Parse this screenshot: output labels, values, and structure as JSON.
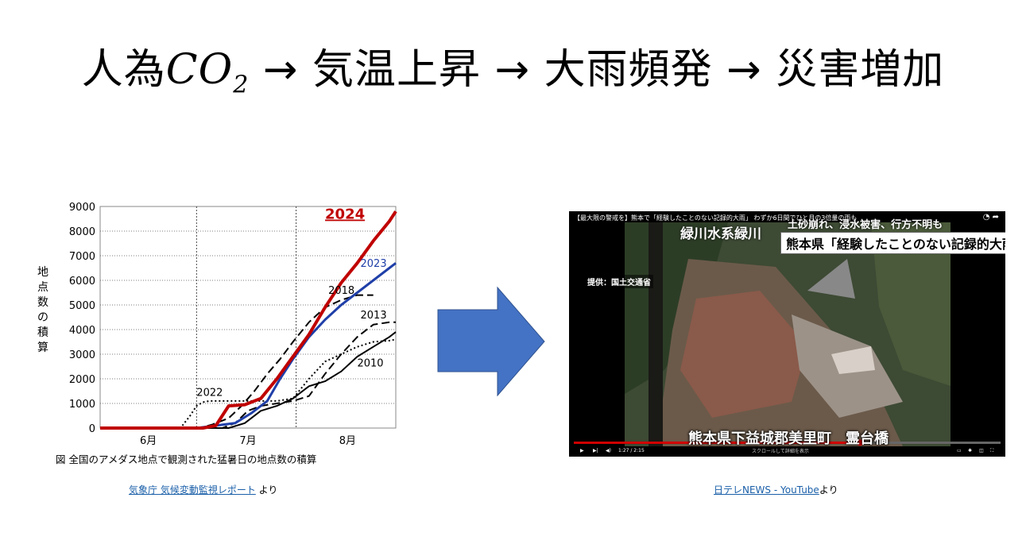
{
  "title": {
    "part1": "人為",
    "co": "CO",
    "sub": "2",
    "rest": " → 気温上昇 → 大雨頻発 → 災害増加"
  },
  "chart_data": {
    "type": "line",
    "ylabel": "地点数の積算",
    "ylim": [
      0,
      9000
    ],
    "yticks": [
      0,
      1000,
      2000,
      3000,
      4000,
      5000,
      6000,
      7000,
      8000,
      9000
    ],
    "xlabel_ticks": [
      "6月",
      "7月",
      "8月"
    ],
    "caption": "図 全国のアメダス地点で観測された猛暑日の地点数の積算",
    "series": [
      {
        "name": "2024",
        "color": "#c00000",
        "width": 4,
        "dash": "",
        "x": [
          0,
          22,
          32,
          36,
          40,
          45,
          50,
          55,
          60,
          65,
          70,
          75,
          80,
          85,
          90,
          92
        ],
        "y": [
          0,
          0,
          0,
          100,
          900,
          950,
          1200,
          2000,
          2900,
          3800,
          4900,
          5900,
          6700,
          7600,
          8400,
          8800
        ]
      },
      {
        "name": "2023",
        "color": "#1f3fa8",
        "width": 3,
        "dash": "",
        "x": [
          0,
          30,
          36,
          42,
          47,
          52,
          56,
          60,
          65,
          70,
          75,
          80,
          85,
          90,
          92
        ],
        "y": [
          0,
          0,
          100,
          200,
          600,
          1100,
          2000,
          2800,
          3700,
          4400,
          5000,
          5500,
          6000,
          6500,
          6700
        ]
      },
      {
        "name": "2022",
        "color": "#000",
        "width": 2,
        "dash": "2,3",
        "x": [
          0,
          25,
          28,
          30,
          32,
          34,
          40,
          45,
          50,
          55,
          60,
          65,
          70,
          75,
          80,
          85,
          90,
          92
        ],
        "y": [
          0,
          0,
          500,
          900,
          1050,
          1100,
          1100,
          1100,
          1100,
          1100,
          1200,
          2000,
          2700,
          3000,
          3300,
          3500,
          3550,
          3600
        ]
      },
      {
        "name": "2018",
        "color": "#000",
        "width": 2,
        "dash": "10,5",
        "x": [
          0,
          31,
          35,
          40,
          44,
          48,
          52,
          56,
          60,
          65,
          70,
          75,
          80,
          85
        ],
        "y": [
          0,
          0,
          150,
          400,
          900,
          1500,
          2200,
          2800,
          3500,
          4300,
          4900,
          5200,
          5400,
          5400
        ]
      },
      {
        "name": "2013",
        "color": "#000",
        "width": 2,
        "dash": "10,5",
        "x": [
          0,
          38,
          42,
          46,
          50,
          55,
          60,
          65,
          70,
          75,
          80,
          85,
          90,
          92
        ],
        "y": [
          0,
          0,
          200,
          700,
          900,
          1000,
          1100,
          1300,
          2200,
          3000,
          3700,
          4200,
          4300,
          4300
        ]
      },
      {
        "name": "2010",
        "color": "#000",
        "width": 2,
        "dash": "",
        "x": [
          0,
          40,
          45,
          50,
          55,
          60,
          65,
          70,
          75,
          80,
          85,
          90,
          92
        ],
        "y": [
          0,
          0,
          200,
          700,
          900,
          1200,
          1700,
          1900,
          2300,
          2900,
          3300,
          3700,
          3900
        ]
      }
    ],
    "labels": [
      {
        "text": "2024",
        "color": "#c00000",
        "bold": true,
        "size": 18
      },
      {
        "text": "2023",
        "color": "#1f3fa8",
        "bold": false,
        "size": 13
      },
      {
        "text": "2018",
        "color": "#000",
        "bold": false,
        "size": 13
      },
      {
        "text": "2013",
        "color": "#000",
        "bold": false,
        "size": 13
      },
      {
        "text": "2010",
        "color": "#000",
        "bold": false,
        "size": 13
      },
      {
        "text": "2022",
        "color": "#000",
        "bold": false,
        "size": 13
      }
    ]
  },
  "captions": {
    "left_link": "気象庁 気候変動監視レポート",
    "left_suffix": " より",
    "right_link": "日テレNEWS - YouTube",
    "right_suffix": "より"
  },
  "video": {
    "title": "【最大限の警戒を】熊本で「経験したことのない記録的大雨」 わずか6日間でひと月の3倍量の雨も",
    "banner": "熊本県「経験したことのない記録的大雨」",
    "overlay_top": "緑川水系緑川",
    "overlay_top2": "土砂崩れ、浸水被害、行方不明も",
    "source": "提供：国土交通省",
    "location": "熊本県下益城郡美里町　霊台橋",
    "time": "1:27 / 2:15",
    "scroll_hint": "スクロールして詳細を表示",
    "icons": [
      "play-icon",
      "next-icon",
      "volume-icon",
      "subtitles-icon",
      "settings-icon",
      "cast-icon",
      "fullscreen-icon",
      "clock-icon",
      "share-icon"
    ]
  }
}
